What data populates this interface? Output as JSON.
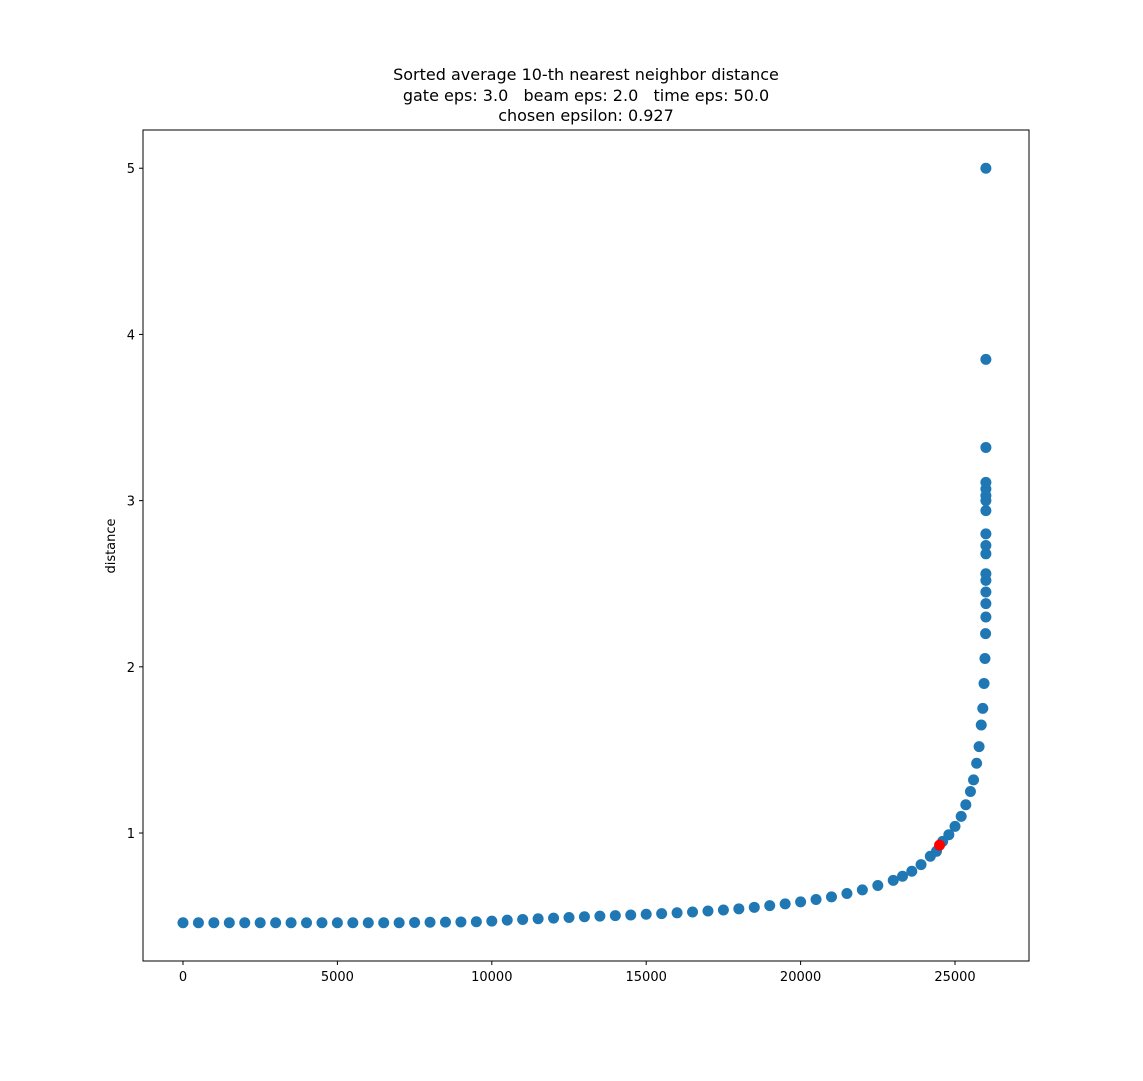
{
  "chart_data": {
    "type": "scatter",
    "title": "Sorted average 10-th nearest neighbor distance",
    "subtitle": [
      "gate eps: 3.0   beam eps: 2.0   time eps: 50.0",
      "chosen epsilon: 0.927"
    ],
    "y_label": "distance",
    "xlim": [
      -1295,
      27396
    ],
    "ylim": [
      0.23,
      5.23
    ],
    "xticks": [
      0,
      5000,
      10000,
      15000,
      20000,
      25000
    ],
    "yticks": [
      1,
      2,
      3,
      4,
      5
    ],
    "series": [
      {
        "color": "#1f77b4",
        "x": [
          0,
          500,
          1000,
          1500,
          2000,
          2500,
          3000,
          3500,
          4000,
          4500,
          5000,
          5500,
          6000,
          6500,
          7000,
          7500,
          8000,
          8500,
          9000,
          9500,
          10000,
          10500,
          11000,
          11500,
          12000,
          12500,
          13000,
          13500,
          14000,
          14500,
          15000,
          15500,
          16000,
          16500,
          17000,
          17500,
          18000,
          18500,
          19000,
          19500,
          20000,
          20500,
          21000,
          21500,
          22000,
          22500,
          23000,
          23300,
          23600,
          23900,
          24200,
          24400,
          24600,
          24800,
          25000,
          25200,
          25350,
          25500,
          25600,
          25700,
          25780,
          25850,
          25900,
          25940,
          25970,
          25990,
          26000,
          26000,
          26000,
          26000,
          26000,
          26000,
          26000,
          26000,
          26000,
          26000,
          26000,
          26000,
          26000,
          26000,
          26000,
          26000
        ],
        "values": [
          0.46,
          0.46,
          0.46,
          0.46,
          0.46,
          0.46,
          0.46,
          0.46,
          0.46,
          0.46,
          0.46,
          0.46,
          0.46,
          0.46,
          0.46,
          0.462,
          0.463,
          0.464,
          0.465,
          0.466,
          0.47,
          0.476,
          0.48,
          0.484,
          0.488,
          0.492,
          0.496,
          0.5,
          0.503,
          0.507,
          0.511,
          0.515,
          0.52,
          0.525,
          0.531,
          0.537,
          0.544,
          0.553,
          0.563,
          0.574,
          0.586,
          0.6,
          0.616,
          0.636,
          0.658,
          0.684,
          0.715,
          0.74,
          0.77,
          0.81,
          0.86,
          0.89,
          0.95,
          0.99,
          1.04,
          1.1,
          1.17,
          1.25,
          1.32,
          1.42,
          1.52,
          1.65,
          1.75,
          1.9,
          2.05,
          2.2,
          2.3,
          2.38,
          2.45,
          2.52,
          2.56,
          2.68,
          2.73,
          2.8,
          2.94,
          3.0,
          3.03,
          3.07,
          3.11,
          3.32,
          3.85,
          5.0
        ]
      },
      {
        "color": "#ff0000",
        "x": [
          24500
        ],
        "values": [
          0.927
        ]
      }
    ]
  }
}
